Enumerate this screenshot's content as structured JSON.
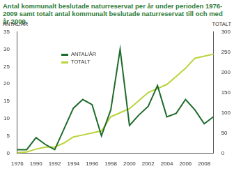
{
  "chart_data": {
    "type": "line",
    "title": "Antal kommunalt beslutade naturreservat per år under perioden 1976-2009 samt totalt antal kommunalt beslutade naturreservat till och med år 2009.",
    "y_label": "ANTAL/ÅR",
    "y2_label": "TOTALT",
    "categories": [
      "1976",
      null,
      "1990",
      null,
      "1992",
      null,
      "1994",
      null,
      "1996",
      null,
      "1998",
      null,
      "2000",
      null,
      "2002",
      null,
      "2004",
      null,
      "2006",
      null,
      "2008",
      null
    ],
    "series": [
      {
        "name": "ANTAL/ÅR",
        "color": "#1e6b2c",
        "values": [
          1,
          1,
          4.5,
          2.5,
          1,
          7,
          13,
          15.5,
          14,
          5,
          12.5,
          30,
          8,
          11,
          13.5,
          19.5,
          10.5,
          11.5,
          15.5,
          12.5,
          8.5,
          10.5
        ]
      },
      {
        "name": "TOTALT",
        "color": "#b8d43a",
        "axis": "y2",
        "values": [
          1,
          3,
          10,
          15,
          15,
          25,
          40,
          45,
          50,
          55,
          90,
          100,
          110,
          130,
          150,
          160,
          170,
          190,
          210,
          235,
          240,
          245
        ]
      }
    ],
    "ylim": [
      0,
      35
    ],
    "yticks": [
      0,
      5,
      10,
      15,
      20,
      25,
      30,
      35
    ],
    "y2lim": [
      0,
      300
    ],
    "y2ticks": [
      0,
      50,
      100,
      150,
      200,
      250,
      300
    ],
    "grid": false,
    "legend": "upper left"
  }
}
